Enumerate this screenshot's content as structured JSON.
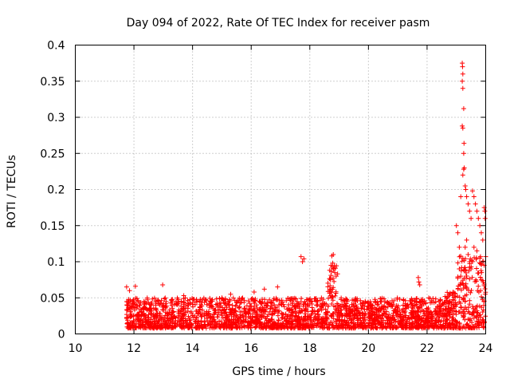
{
  "chart_data": {
    "type": "scatter",
    "title": "Day 094 of 2022, Rate Of TEC Index for receiver pasm",
    "xlabel": "GPS time / hours",
    "ylabel": "ROTI / TECUs",
    "xlim": [
      10,
      24
    ],
    "ylim": [
      0,
      0.4
    ],
    "xticks": [
      10,
      12,
      14,
      16,
      18,
      20,
      22,
      24
    ],
    "yticks": [
      0,
      0.05,
      0.1,
      0.15,
      0.2,
      0.25,
      0.3,
      0.35,
      0.4
    ],
    "xtick_labels": [
      "10",
      "12",
      "14",
      "16",
      "18",
      "20",
      "22",
      "24"
    ],
    "ytick_labels": [
      "0",
      "0.05",
      "0.1",
      "0.15",
      "0.2",
      "0.25",
      "0.3",
      "0.35",
      "0.4"
    ],
    "grid": true,
    "marker": "plus",
    "color": "#ff0000",
    "series": [
      {
        "points": [
          [
            11.75,
            0.065
          ],
          [
            11.85,
            0.06
          ],
          [
            12.05,
            0.066
          ],
          [
            12.98,
            0.068
          ],
          [
            13.7,
            0.053
          ],
          [
            13.75,
            0.05
          ],
          [
            15.3,
            0.055
          ],
          [
            16.1,
            0.058
          ],
          [
            16.45,
            0.062
          ],
          [
            16.9,
            0.065
          ],
          [
            17.7,
            0.107
          ],
          [
            17.75,
            0.1
          ],
          [
            17.8,
            0.104
          ],
          [
            18.75,
            0.108
          ],
          [
            18.8,
            0.11
          ],
          [
            18.78,
            0.098
          ],
          [
            18.82,
            0.09
          ],
          [
            18.85,
            0.085
          ],
          [
            18.9,
            0.08
          ],
          [
            18.7,
            0.075
          ],
          [
            21.7,
            0.078
          ],
          [
            21.72,
            0.072
          ],
          [
            21.75,
            0.068
          ],
          [
            23.0,
            0.15
          ],
          [
            23.05,
            0.14
          ],
          [
            23.1,
            0.12
          ],
          [
            23.15,
            0.19
          ],
          [
            23.2,
            0.375
          ],
          [
            23.21,
            0.37
          ],
          [
            23.22,
            0.36
          ],
          [
            23.2,
            0.35
          ],
          [
            23.22,
            0.34
          ],
          [
            23.25,
            0.312
          ],
          [
            23.2,
            0.288
          ],
          [
            23.22,
            0.285
          ],
          [
            23.26,
            0.264
          ],
          [
            23.25,
            0.25
          ],
          [
            23.27,
            0.23
          ],
          [
            23.25,
            0.228
          ],
          [
            23.22,
            0.22
          ],
          [
            23.3,
            0.205
          ],
          [
            23.32,
            0.2
          ],
          [
            23.35,
            0.19
          ],
          [
            23.4,
            0.18
          ],
          [
            23.45,
            0.17
          ],
          [
            23.5,
            0.16
          ],
          [
            23.55,
            0.198
          ],
          [
            23.6,
            0.19
          ],
          [
            23.65,
            0.18
          ],
          [
            23.7,
            0.17
          ],
          [
            23.75,
            0.16
          ],
          [
            23.8,
            0.15
          ],
          [
            23.85,
            0.14
          ],
          [
            23.9,
            0.13
          ],
          [
            23.95,
            0.175
          ],
          [
            23.97,
            0.17
          ],
          [
            23.98,
            0.16
          ],
          [
            23.35,
            0.13
          ],
          [
            23.3,
            0.12
          ],
          [
            23.4,
            0.11
          ],
          [
            23.45,
            0.1
          ],
          [
            23.5,
            0.09
          ],
          [
            23.6,
            0.12
          ],
          [
            23.7,
            0.115
          ],
          [
            23.8,
            0.105
          ],
          [
            23.9,
            0.1
          ],
          [
            23.95,
            0.095
          ],
          [
            23.1,
            0.09
          ],
          [
            23.15,
            0.08
          ],
          [
            23.2,
            0.07
          ]
        ]
      }
    ]
  }
}
